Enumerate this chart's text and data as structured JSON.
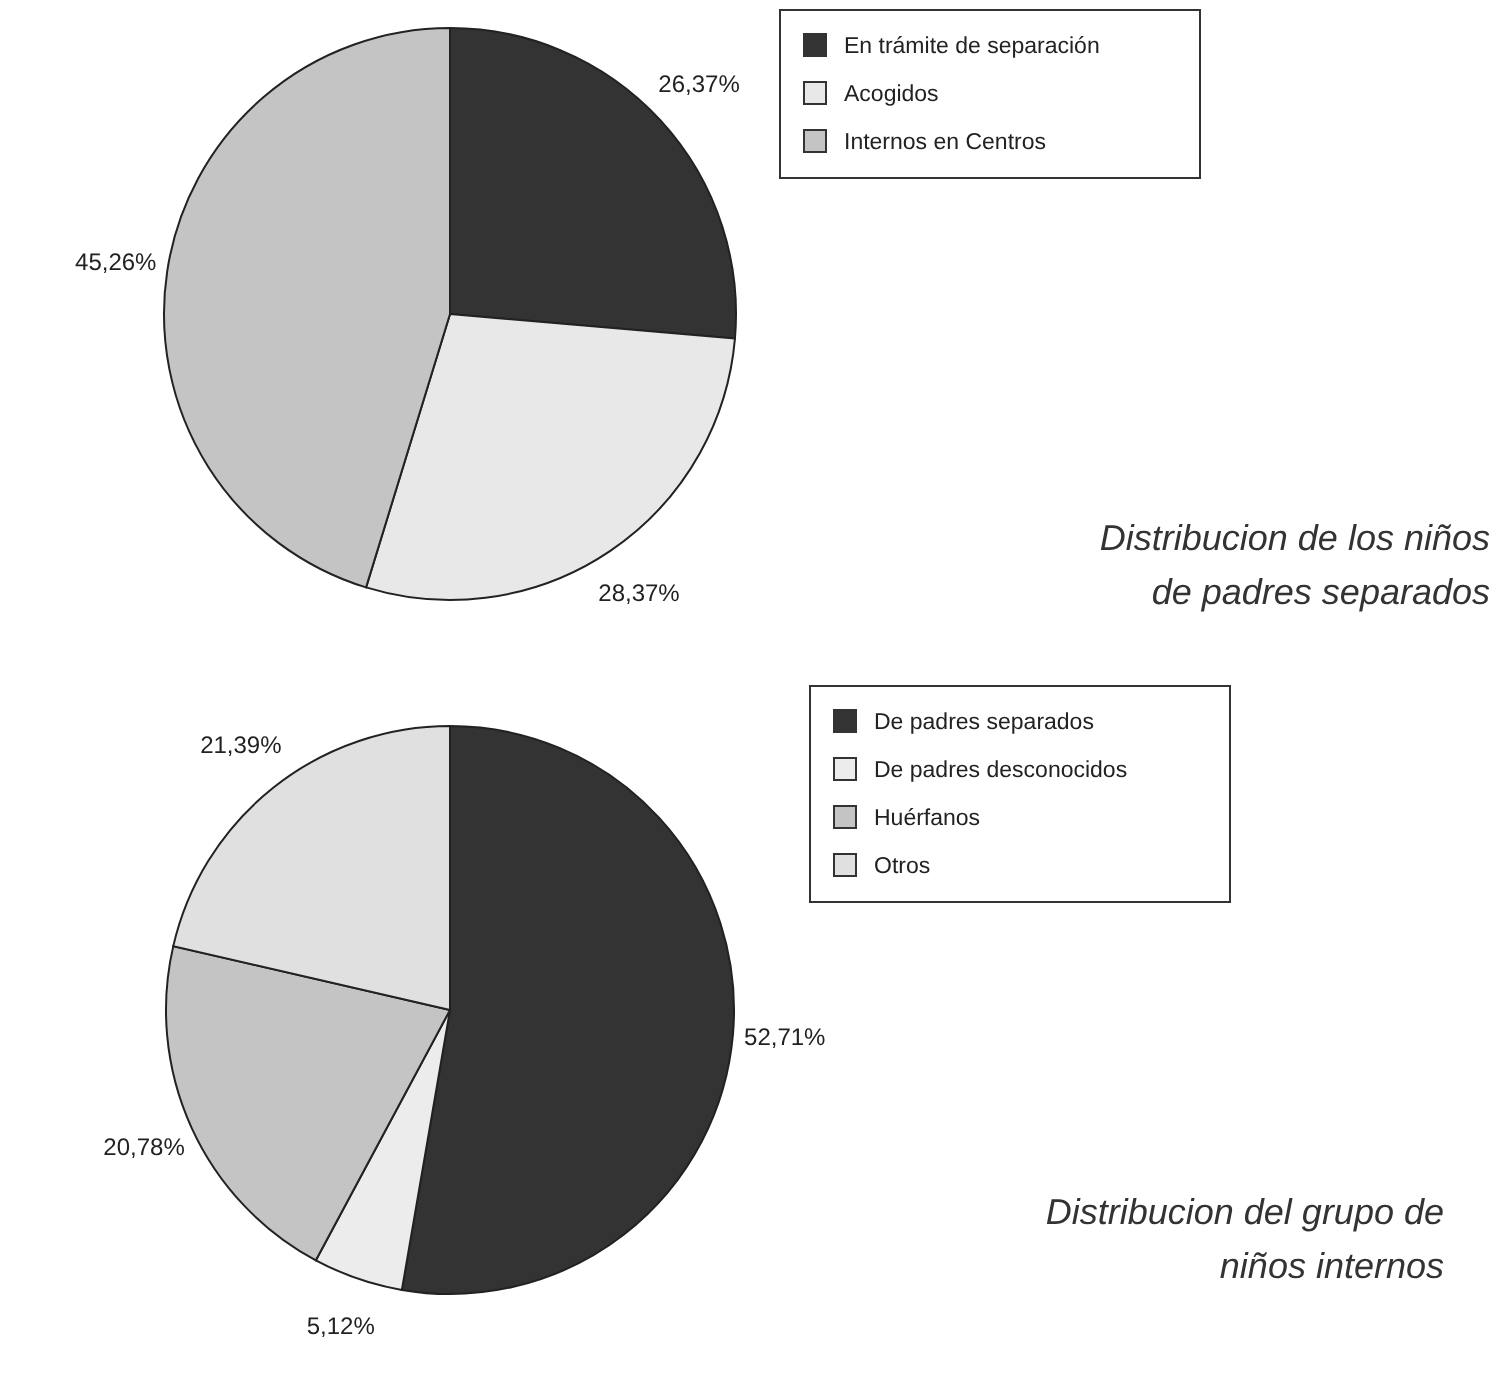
{
  "chart_data": [
    {
      "type": "pie",
      "title": "Distribucion de los niños de padres separados",
      "categories": [
        "En trámite de separación",
        "Acogidos",
        "Internos en Centros"
      ],
      "values": [
        26.37,
        28.37,
        45.26
      ],
      "value_labels": [
        "26,37%",
        "28,37%",
        "45,26%"
      ],
      "colors": [
        "#333333",
        "#e8e8e8",
        "#c4c4c4"
      ],
      "legend": "top right"
    },
    {
      "type": "pie",
      "title": "Distribucion del grupo de niños internos",
      "categories": [
        "De padres separados",
        "De padres desconocidos",
        "Huérfanos",
        "Otros"
      ],
      "values": [
        52.71,
        5.12,
        20.78,
        21.39
      ],
      "value_labels": [
        "52,71%",
        "5,12%",
        "20,78%",
        "21,39%"
      ],
      "colors": [
        "#333333",
        "#ececec",
        "#c4c4c4",
        "#e0e0e0"
      ],
      "legend": "top right"
    }
  ]
}
